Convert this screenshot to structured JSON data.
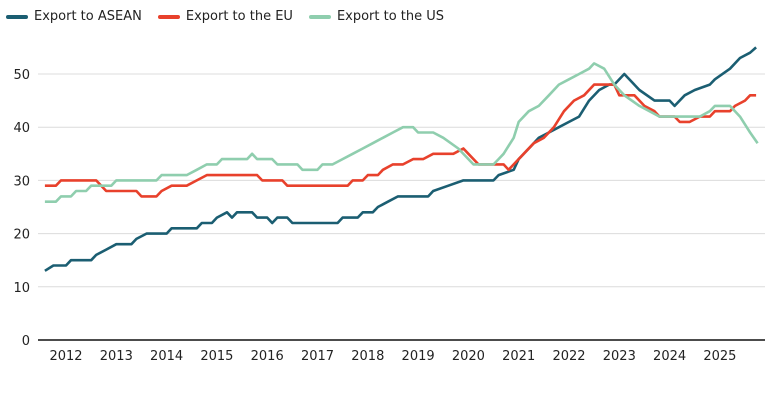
{
  "chart_data": {
    "type": "line",
    "title": "",
    "xlabel": "",
    "ylabel": "",
    "ylim": [
      0,
      55
    ],
    "xlim": [
      2011.5,
      2026
    ],
    "yticks": [
      "0",
      "10",
      "20",
      "30",
      "40",
      "50"
    ],
    "xticks": [
      "2012",
      "2013",
      "2014",
      "2015",
      "2016",
      "2017",
      "2018",
      "2019",
      "2020",
      "2021",
      "2022",
      "2023",
      "2024",
      "2025"
    ],
    "grid": true,
    "legend_position": "top-left",
    "series": [
      {
        "name": "Export to ASEAN",
        "color": "#1b5e72",
        "points": [
          [
            2011.58,
            13
          ],
          [
            2011.75,
            14
          ],
          [
            2012.0,
            14
          ],
          [
            2012.1,
            15
          ],
          [
            2012.5,
            15
          ],
          [
            2012.6,
            16
          ],
          [
            2012.8,
            17
          ],
          [
            2013.0,
            18
          ],
          [
            2013.3,
            18
          ],
          [
            2013.4,
            19
          ],
          [
            2013.6,
            20
          ],
          [
            2014.0,
            20
          ],
          [
            2014.1,
            21
          ],
          [
            2014.6,
            21
          ],
          [
            2014.7,
            22
          ],
          [
            2014.9,
            22
          ],
          [
            2015.0,
            23
          ],
          [
            2015.2,
            24
          ],
          [
            2015.3,
            23
          ],
          [
            2015.4,
            24
          ],
          [
            2015.7,
            24
          ],
          [
            2015.8,
            23
          ],
          [
            2016.0,
            23
          ],
          [
            2016.1,
            22
          ],
          [
            2016.2,
            23
          ],
          [
            2016.4,
            23
          ],
          [
            2016.5,
            22
          ],
          [
            2017.4,
            22
          ],
          [
            2017.5,
            23
          ],
          [
            2017.8,
            23
          ],
          [
            2017.9,
            24
          ],
          [
            2018.1,
            24
          ],
          [
            2018.2,
            25
          ],
          [
            2018.4,
            26
          ],
          [
            2018.6,
            27
          ],
          [
            2019.2,
            27
          ],
          [
            2019.3,
            28
          ],
          [
            2019.6,
            29
          ],
          [
            2019.9,
            30
          ],
          [
            2020.5,
            30
          ],
          [
            2020.6,
            31
          ],
          [
            2020.9,
            32
          ],
          [
            2021.0,
            34
          ],
          [
            2021.2,
            36
          ],
          [
            2021.4,
            38
          ],
          [
            2021.6,
            39
          ],
          [
            2021.8,
            40
          ],
          [
            2022.0,
            41
          ],
          [
            2022.2,
            42
          ],
          [
            2022.4,
            45
          ],
          [
            2022.6,
            47
          ],
          [
            2022.8,
            48
          ],
          [
            2022.9,
            48
          ],
          [
            2023.1,
            50
          ],
          [
            2023.4,
            47
          ],
          [
            2023.7,
            45
          ],
          [
            2024.0,
            45
          ],
          [
            2024.1,
            44
          ],
          [
            2024.3,
            46
          ],
          [
            2024.5,
            47
          ],
          [
            2024.8,
            48
          ],
          [
            2024.9,
            49
          ],
          [
            2025.2,
            51
          ],
          [
            2025.4,
            53
          ],
          [
            2025.6,
            54
          ],
          [
            2025.72,
            55
          ]
        ]
      },
      {
        "name": "Export to the EU",
        "color": "#e8412c",
        "points": [
          [
            2011.58,
            29
          ],
          [
            2011.8,
            29
          ],
          [
            2011.9,
            30
          ],
          [
            2012.6,
            30
          ],
          [
            2012.7,
            29
          ],
          [
            2012.8,
            28
          ],
          [
            2013.4,
            28
          ],
          [
            2013.5,
            27
          ],
          [
            2013.8,
            27
          ],
          [
            2013.9,
            28
          ],
          [
            2014.1,
            29
          ],
          [
            2014.4,
            29
          ],
          [
            2014.6,
            30
          ],
          [
            2014.8,
            31
          ],
          [
            2015.8,
            31
          ],
          [
            2015.9,
            30
          ],
          [
            2016.3,
            30
          ],
          [
            2016.4,
            29
          ],
          [
            2017.6,
            29
          ],
          [
            2017.7,
            30
          ],
          [
            2017.9,
            30
          ],
          [
            2018.0,
            31
          ],
          [
            2018.2,
            31
          ],
          [
            2018.3,
            32
          ],
          [
            2018.5,
            33
          ],
          [
            2018.7,
            33
          ],
          [
            2018.9,
            34
          ],
          [
            2019.1,
            34
          ],
          [
            2019.3,
            35
          ],
          [
            2019.7,
            35
          ],
          [
            2019.9,
            36
          ],
          [
            2020.0,
            35
          ],
          [
            2020.2,
            33
          ],
          [
            2020.7,
            33
          ],
          [
            2020.8,
            32
          ],
          [
            2020.9,
            33
          ],
          [
            2021.1,
            35
          ],
          [
            2021.3,
            37
          ],
          [
            2021.5,
            38
          ],
          [
            2021.7,
            40
          ],
          [
            2021.9,
            43
          ],
          [
            2022.1,
            45
          ],
          [
            2022.3,
            46
          ],
          [
            2022.5,
            48
          ],
          [
            2022.9,
            48
          ],
          [
            2023.0,
            46
          ],
          [
            2023.3,
            46
          ],
          [
            2023.5,
            44
          ],
          [
            2023.7,
            43
          ],
          [
            2023.8,
            42
          ],
          [
            2024.1,
            42
          ],
          [
            2024.2,
            41
          ],
          [
            2024.4,
            41
          ],
          [
            2024.6,
            42
          ],
          [
            2024.8,
            42
          ],
          [
            2024.9,
            43
          ],
          [
            2025.2,
            43
          ],
          [
            2025.3,
            44
          ],
          [
            2025.5,
            45
          ],
          [
            2025.6,
            46
          ],
          [
            2025.72,
            46
          ]
        ]
      },
      {
        "name": "Export to the US",
        "color": "#8fceae",
        "points": [
          [
            2011.58,
            26
          ],
          [
            2011.8,
            26
          ],
          [
            2011.9,
            27
          ],
          [
            2012.1,
            27
          ],
          [
            2012.2,
            28
          ],
          [
            2012.4,
            28
          ],
          [
            2012.5,
            29
          ],
          [
            2012.9,
            29
          ],
          [
            2013.0,
            30
          ],
          [
            2013.8,
            30
          ],
          [
            2013.9,
            31
          ],
          [
            2014.4,
            31
          ],
          [
            2014.6,
            32
          ],
          [
            2014.8,
            33
          ],
          [
            2015.0,
            33
          ],
          [
            2015.1,
            34
          ],
          [
            2015.6,
            34
          ],
          [
            2015.7,
            35
          ],
          [
            2015.8,
            34
          ],
          [
            2016.1,
            34
          ],
          [
            2016.2,
            33
          ],
          [
            2016.6,
            33
          ],
          [
            2016.7,
            32
          ],
          [
            2017.0,
            32
          ],
          [
            2017.1,
            33
          ],
          [
            2017.3,
            33
          ],
          [
            2017.5,
            34
          ],
          [
            2017.7,
            35
          ],
          [
            2017.9,
            36
          ],
          [
            2018.1,
            37
          ],
          [
            2018.3,
            38
          ],
          [
            2018.5,
            39
          ],
          [
            2018.7,
            40
          ],
          [
            2018.9,
            40
          ],
          [
            2019.0,
            39
          ],
          [
            2019.3,
            39
          ],
          [
            2019.5,
            38
          ],
          [
            2019.8,
            36
          ],
          [
            2020.0,
            34
          ],
          [
            2020.1,
            33
          ],
          [
            2020.5,
            33
          ],
          [
            2020.6,
            34
          ],
          [
            2020.7,
            35
          ],
          [
            2020.9,
            38
          ],
          [
            2021.0,
            41
          ],
          [
            2021.2,
            43
          ],
          [
            2021.4,
            44
          ],
          [
            2021.6,
            46
          ],
          [
            2021.8,
            48
          ],
          [
            2022.0,
            49
          ],
          [
            2022.2,
            50
          ],
          [
            2022.4,
            51
          ],
          [
            2022.5,
            52
          ],
          [
            2022.7,
            51
          ],
          [
            2022.9,
            48
          ],
          [
            2023.1,
            46
          ],
          [
            2023.4,
            44
          ],
          [
            2023.6,
            43
          ],
          [
            2023.8,
            42
          ],
          [
            2024.6,
            42
          ],
          [
            2024.8,
            43
          ],
          [
            2024.9,
            44
          ],
          [
            2025.2,
            44
          ],
          [
            2025.4,
            42
          ],
          [
            2025.6,
            39
          ],
          [
            2025.75,
            37
          ]
        ]
      }
    ]
  }
}
